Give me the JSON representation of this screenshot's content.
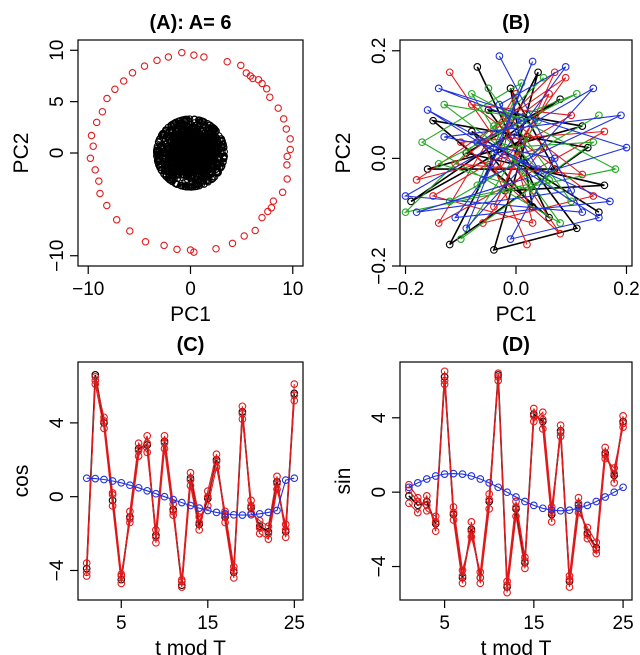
{
  "colors": {
    "black": "#000000",
    "red": "#e31a1c",
    "blue": "#2233dd",
    "green": "#22aa22"
  },
  "chart_data": [
    {
      "id": "A",
      "type": "scatter",
      "title": "(A): A= 6",
      "xlabel": "PC1",
      "ylabel": "PC2",
      "xlim": [
        -11,
        11
      ],
      "ylim": [
        -11,
        11
      ],
      "xticks": [
        -10,
        0,
        10
      ],
      "xtick_labels": [
        "−10",
        "0",
        "10"
      ],
      "yticks": [
        -10,
        0,
        5,
        10
      ],
      "ytick_labels": [
        "−10",
        "0",
        "5",
        "10"
      ],
      "series": [
        {
          "color": "black",
          "shape": "filled-cluster",
          "center": [
            0,
            0
          ],
          "radius": 3.3
        },
        {
          "color": "red",
          "shape": "ring-of-circles",
          "center": [
            0,
            0
          ],
          "radius": 9.6,
          "angles_deg": [
            2,
            8,
            14,
            20,
            27,
            35,
            40,
            44,
            47,
            50,
            52,
            55,
            60,
            68,
            82,
            88,
            95,
            103,
            110,
            118,
            126,
            133,
            140,
            147,
            155,
            162,
            170,
            176,
            183,
            190,
            197,
            204,
            212,
            222,
            232,
            243,
            254,
            262,
            270,
            272,
            285,
            295,
            303,
            310,
            318,
            323,
            326,
            330,
            337,
            345,
            353,
            358
          ]
        }
      ]
    },
    {
      "id": "B",
      "type": "line",
      "title": "(B)",
      "xlabel": "PC1",
      "ylabel": "PC2",
      "xlim": [
        -0.21,
        0.21
      ],
      "ylim": [
        -0.2,
        0.22
      ],
      "xticks": [
        -0.2,
        0.0,
        0.2
      ],
      "xtick_labels": [
        "−0.2",
        "0.0",
        "0.2"
      ],
      "yticks": [
        -0.2,
        0.0,
        0.2
      ],
      "ytick_labels": [
        "−0.2",
        "0.0",
        "0.2"
      ],
      "series": [
        {
          "color": "black",
          "points": [
            [
              -0.07,
              0.17
            ],
            [
              0.06,
              -0.11
            ],
            [
              -0.15,
              0.07
            ],
            [
              0.13,
              0.02
            ],
            [
              -0.12,
              -0.16
            ],
            [
              0.04,
              0.16
            ],
            [
              -0.02,
              -0.06
            ],
            [
              0.16,
              -0.05
            ],
            [
              -0.09,
              0.01
            ],
            [
              0.08,
              0.11
            ],
            [
              -0.19,
              -0.08
            ],
            [
              0.02,
              0.04
            ],
            [
              -0.04,
              -0.17
            ],
            [
              0.11,
              -0.13
            ],
            [
              -0.05,
              0.09
            ],
            [
              0.12,
              0.06
            ],
            [
              -0.16,
              -0.02
            ],
            [
              0.07,
              -0.02
            ],
            [
              -0.01,
              0.13
            ],
            [
              0.03,
              -0.09
            ],
            [
              -0.08,
              0.05
            ],
            [
              0.15,
              -0.1
            ]
          ]
        },
        {
          "color": "red",
          "points": [
            [
              -0.12,
              0.16
            ],
            [
              0.08,
              -0.14
            ],
            [
              -0.1,
              0.03
            ],
            [
              0.16,
              0.05
            ],
            [
              -0.14,
              -0.12
            ],
            [
              0.0,
              0.12
            ],
            [
              -0.03,
              -0.02
            ],
            [
              0.09,
              0.15
            ],
            [
              -0.18,
              -0.04
            ],
            [
              0.05,
              0.02
            ],
            [
              -0.06,
              -0.12
            ],
            [
              0.14,
              -0.07
            ],
            [
              -0.08,
              0.1
            ],
            [
              0.1,
              0.08
            ],
            [
              -0.15,
              -0.07
            ],
            [
              0.03,
              -0.12
            ],
            [
              -0.02,
              0.08
            ],
            [
              0.12,
              -0.03
            ],
            [
              -0.11,
              -0.01
            ],
            [
              0.06,
              0.12
            ],
            [
              -0.04,
              -0.09
            ],
            [
              0.07,
              0.16
            ],
            [
              -0.06,
              0.03
            ],
            [
              0.02,
              -0.16
            ]
          ]
        },
        {
          "color": "green",
          "points": [
            [
              -0.05,
              0.13
            ],
            [
              0.1,
              -0.08
            ],
            [
              -0.13,
              0.1
            ],
            [
              0.04,
              0.07
            ],
            [
              -0.1,
              -0.15
            ],
            [
              0.14,
              0.03
            ],
            [
              -0.02,
              0.02
            ],
            [
              0.08,
              -0.12
            ],
            [
              -0.17,
              0.03
            ],
            [
              0.01,
              0.14
            ],
            [
              -0.07,
              -0.05
            ],
            [
              0.15,
              0.08
            ],
            [
              -0.12,
              -0.08
            ],
            [
              0.06,
              -0.04
            ],
            [
              -0.04,
              0.06
            ],
            [
              0.11,
              0.12
            ],
            [
              -0.14,
              -0.01
            ],
            [
              0.03,
              -0.06
            ],
            [
              -0.08,
              0.12
            ],
            [
              0.18,
              -0.02
            ],
            [
              -0.2,
              -0.1
            ],
            [
              0.05,
              0.15
            ]
          ]
        },
        {
          "color": "blue",
          "points": [
            [
              -0.03,
              0.19
            ],
            [
              0.12,
              -0.1
            ],
            [
              -0.2,
              -0.07
            ],
            [
              0.14,
              0.13
            ],
            [
              -0.09,
              -0.13
            ],
            [
              0.03,
              0.18
            ],
            [
              -0.06,
              -0.04
            ],
            [
              0.19,
              0.08
            ],
            [
              -0.13,
              0.04
            ],
            [
              0.07,
              0.0
            ],
            [
              -0.01,
              -0.15
            ],
            [
              0.15,
              -0.11
            ],
            [
              -0.16,
              0.09
            ],
            [
              0.04,
              -0.02
            ],
            [
              -0.03,
              0.1
            ],
            [
              0.09,
              0.17
            ],
            [
              -0.11,
              -0.11
            ],
            [
              0.17,
              -0.08
            ],
            [
              -0.07,
              0.03
            ],
            [
              0.01,
              0.07
            ],
            [
              -0.14,
              0.13
            ],
            [
              0.2,
              0.02
            ],
            [
              -0.18,
              -0.1
            ],
            [
              0.1,
              -0.06
            ]
          ]
        }
      ]
    },
    {
      "id": "C",
      "type": "line",
      "title": "(C)",
      "xlabel": "t mod T",
      "ylabel": "cos",
      "xlim": [
        0,
        26
      ],
      "ylim": [
        -5.6,
        7.3
      ],
      "xticks": [
        5,
        15,
        25
      ],
      "xtick_labels": [
        "5",
        "15",
        "25"
      ],
      "yticks": [
        -4,
        0,
        4
      ],
      "ytick_labels": [
        "−4",
        "0",
        "4"
      ],
      "x": [
        1,
        2,
        3,
        4,
        5,
        6,
        7,
        8,
        9,
        10,
        11,
        12,
        13,
        14,
        15,
        16,
        17,
        18,
        19,
        20,
        21,
        22,
        23,
        24,
        25
      ],
      "series": [
        {
          "color": "black",
          "values": [
            -3.9,
            6.6,
            4.0,
            -0.2,
            -4.5,
            -1.1,
            2.6,
            2.8,
            -2.1,
            3.0,
            -0.7,
            -4.8,
            1.0,
            -1.5,
            -0.1,
            2.0,
            -1.1,
            -4.1,
            4.6,
            -0.6,
            -1.6,
            -1.9,
            0.8,
            -1.9,
            5.6
          ]
        },
        {
          "color": "red",
          "values": [
            -4.3,
            6.3,
            4.3,
            0.2,
            -4.2,
            -1.4,
            2.2,
            3.3,
            -2.5,
            2.6,
            -1.0,
            -4.5,
            1.3,
            -1.1,
            -0.5,
            1.6,
            -0.8,
            -3.8,
            4.2,
            -0.2,
            -2.0,
            -2.3,
            0.4,
            -1.5,
            5.2
          ]
        },
        {
          "color": "red",
          "values": [
            -3.6,
            6.1,
            3.7,
            -0.5,
            -4.7,
            -0.8,
            2.9,
            2.4,
            -1.8,
            3.3,
            -0.4,
            -4.9,
            0.6,
            -1.8,
            0.3,
            2.3,
            -1.4,
            -4.4,
            4.9,
            -0.9,
            -1.3,
            -1.6,
            1.1,
            -2.2,
            6.1
          ]
        },
        {
          "color": "red",
          "values": [
            -4.1,
            6.5,
            4.1,
            0.1,
            -4.3,
            -1.2,
            2.5,
            2.9,
            -2.2,
            2.9,
            -0.8,
            -4.6,
            0.9,
            -1.4,
            0.0,
            1.9,
            -1.0,
            -4.0,
            4.5,
            -0.5,
            -1.7,
            -2.0,
            0.7,
            -1.8,
            5.5
          ]
        },
        {
          "color": "blue",
          "shape": "cosine",
          "values": [
            1.0,
            0.98,
            0.93,
            0.85,
            0.75,
            0.62,
            0.48,
            0.32,
            0.16,
            0.0,
            -0.16,
            -0.32,
            -0.48,
            -0.62,
            -0.75,
            -0.85,
            -0.93,
            -0.98,
            -1.0,
            -0.98,
            -0.93,
            -0.85,
            -0.75,
            0.9,
            1.0
          ]
        }
      ]
    },
    {
      "id": "D",
      "type": "line",
      "title": "(D)",
      "xlabel": "t mod T",
      "ylabel": "sin",
      "xlim": [
        0,
        26
      ],
      "ylim": [
        -5.8,
        7.0
      ],
      "xticks": [
        5,
        15,
        25
      ],
      "xtick_labels": [
        "5",
        "15",
        "25"
      ],
      "yticks": [
        -4,
        0,
        4
      ],
      "ytick_labels": [
        "−4",
        "0",
        "4"
      ],
      "x": [
        1,
        2,
        3,
        4,
        5,
        6,
        7,
        8,
        9,
        10,
        11,
        12,
        13,
        14,
        15,
        16,
        17,
        18,
        19,
        20,
        21,
        22,
        23,
        24,
        25
      ],
      "series": [
        {
          "color": "black",
          "values": [
            -0.2,
            -0.7,
            -0.5,
            -1.7,
            6.2,
            -1.2,
            -4.6,
            -2.0,
            -4.6,
            -0.5,
            6.3,
            -5.1,
            -0.9,
            -3.8,
            4.2,
            3.8,
            -1.2,
            3.3,
            -4.8,
            -0.7,
            -2.2,
            -3.0,
            2.1,
            0.9,
            3.8
          ]
        },
        {
          "color": "red",
          "values": [
            0.4,
            -0.3,
            -1.0,
            -1.3,
            5.8,
            -0.8,
            -4.2,
            -2.4,
            -4.3,
            -0.1,
            6.0,
            -4.8,
            -0.5,
            -3.5,
            3.8,
            4.3,
            -0.8,
            3.0,
            -4.5,
            -0.3,
            -2.5,
            -3.3,
            1.8,
            1.3,
            3.5
          ]
        },
        {
          "color": "red",
          "values": [
            -0.6,
            -1.1,
            -0.2,
            -2.1,
            6.5,
            -1.5,
            -4.9,
            -1.6,
            -4.9,
            -0.9,
            6.4,
            -5.4,
            -1.3,
            -4.1,
            4.5,
            3.4,
            -1.6,
            3.6,
            -5.1,
            -1.1,
            -1.9,
            -2.7,
            2.4,
            0.5,
            4.1
          ]
        },
        {
          "color": "red",
          "values": [
            0.1,
            -0.5,
            -0.7,
            -1.6,
            6.0,
            -1.1,
            -4.5,
            -2.1,
            -4.6,
            -0.4,
            6.2,
            -5.0,
            -0.8,
            -3.7,
            4.1,
            3.9,
            -1.1,
            3.2,
            -4.7,
            -0.6,
            -2.3,
            -3.1,
            2.0,
            1.0,
            3.7
          ]
        },
        {
          "color": "blue",
          "shape": "sine",
          "values": [
            0.26,
            0.5,
            0.71,
            0.87,
            0.97,
            1.0,
            0.97,
            0.87,
            0.71,
            0.5,
            0.26,
            0.0,
            -0.26,
            -0.5,
            -0.71,
            -0.87,
            -0.97,
            -1.0,
            -0.97,
            -0.87,
            -0.71,
            -0.5,
            -0.26,
            0.0,
            0.26
          ]
        }
      ]
    }
  ]
}
